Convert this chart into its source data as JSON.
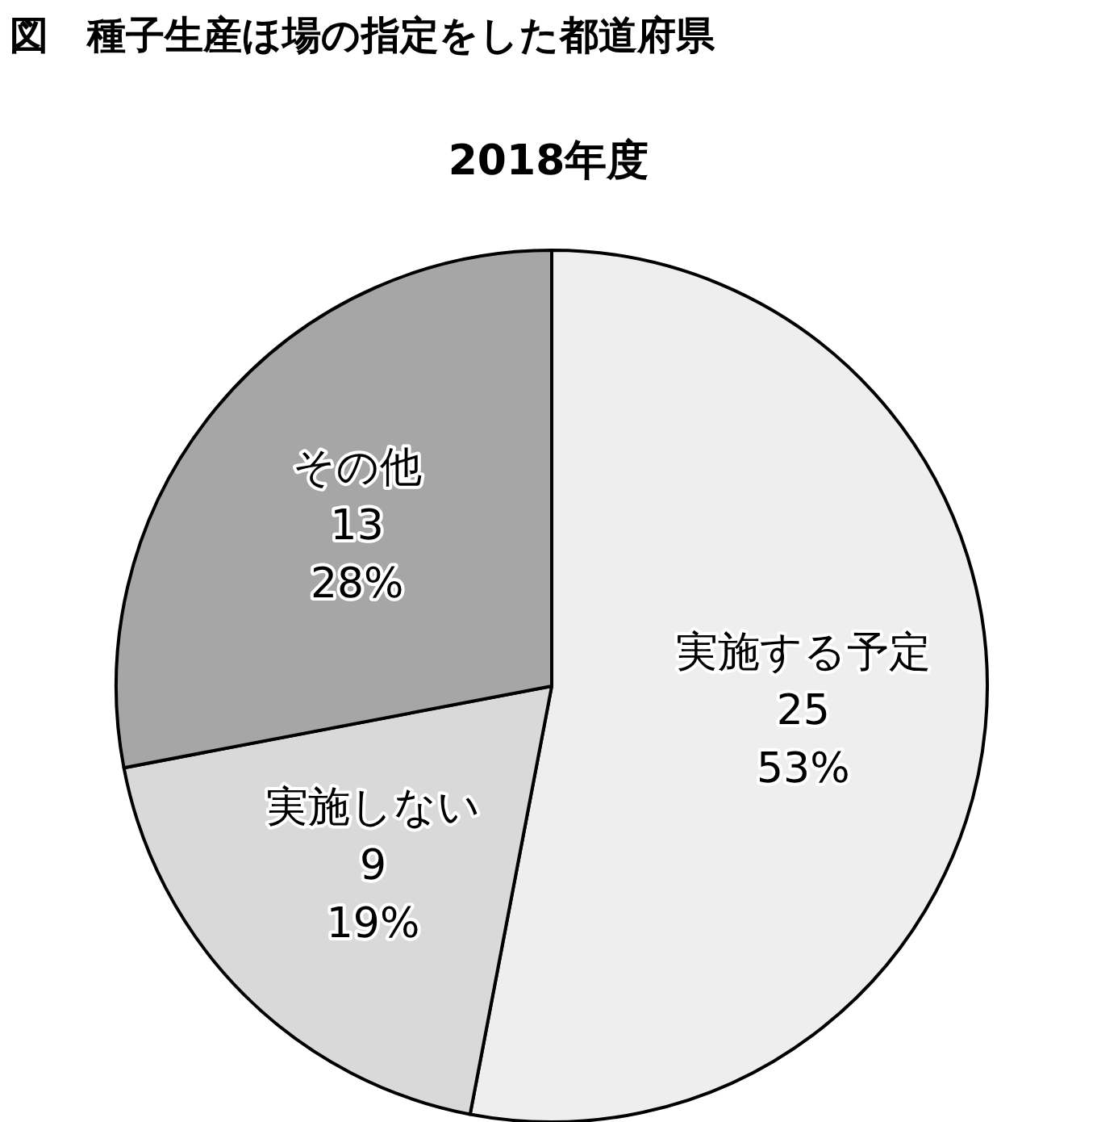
{
  "chart_data": {
    "type": "pie",
    "title": "図　種子生産ほ場の指定をした都道府県",
    "subtitle": "2018年度",
    "categories": [
      "実施する予定",
      "実施しない",
      "その他"
    ],
    "values": [
      53,
      19,
      28
    ],
    "value_labels": [
      "25\n53%",
      "9\n19%",
      "13\n28%"
    ],
    "colors": [
      "#eeeeee",
      "#d9d9d9",
      "#a6a6a6"
    ]
  }
}
